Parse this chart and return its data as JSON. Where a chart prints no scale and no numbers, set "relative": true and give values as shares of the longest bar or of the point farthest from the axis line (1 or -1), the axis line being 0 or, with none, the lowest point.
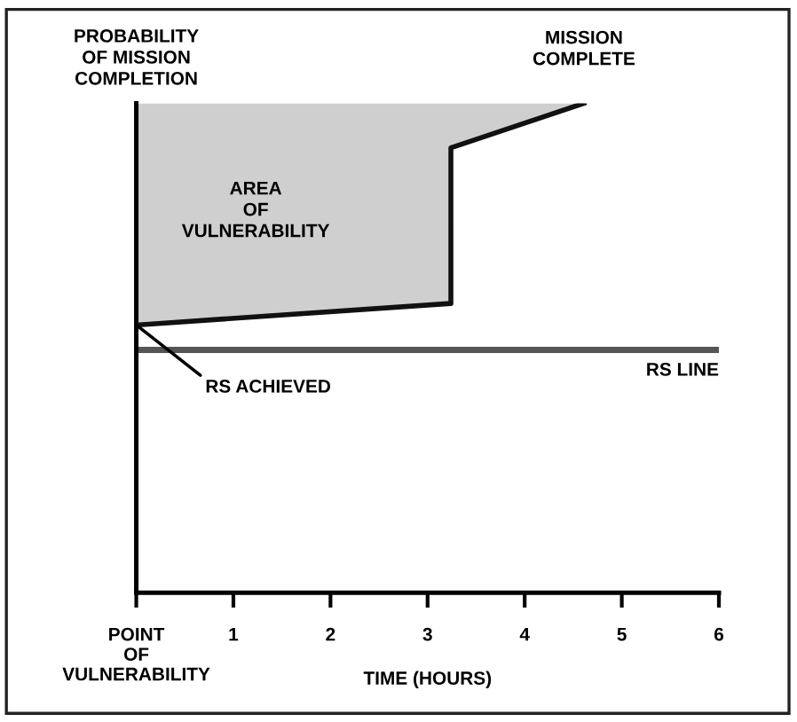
{
  "chart_data": {
    "type": "line",
    "relative": true,
    "ylabel": "PROBABILITY\nOF MISSION\nCOMPLETION",
    "xlabel": "TIME (HOURS)",
    "xlim": [
      0,
      6
    ],
    "xticks": [
      {
        "value": 0,
        "label": "POINT\nOF\nVULNERABILITY"
      },
      1,
      2,
      3,
      4,
      5,
      6
    ],
    "series": [
      {
        "color": "#111111",
        "x": [
          0,
          3.24,
          3.24,
          4.61
        ],
        "values": [
          0.547,
          0.591,
          0.909,
          1
        ],
        "lower": [
          0.547,
          0.591,
          0.909,
          1
        ],
        "upper": [
          1,
          1,
          1,
          1
        ]
      }
    ],
    "ref_lines": [
      {
        "axis": "y",
        "value": 0.496,
        "label": "RS LINE",
        "color": "#555555"
      }
    ],
    "annotations": [
      "AREA\nOF\nVULNERABILITY",
      {
        "text": "MISSION\nCOMPLETE",
        "x": 4.61,
        "y": 1
      },
      {
        "text": "RS ACHIEVED",
        "x": 0,
        "y": 0.547
      }
    ],
    "grid": false,
    "legend": false,
    "marker": "none",
    "line_style": "solid"
  }
}
